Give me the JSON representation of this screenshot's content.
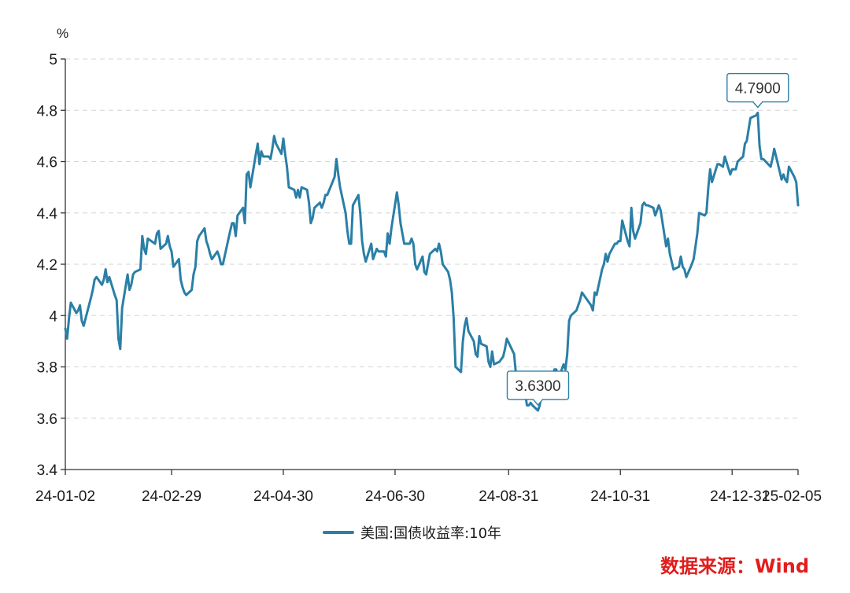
{
  "chart_data": {
    "type": "line",
    "y_unit": "%",
    "ylim": [
      3.4,
      5.0
    ],
    "y_ticks": [
      3.4,
      3.6,
      3.8,
      4.0,
      4.2,
      4.4,
      4.6,
      4.8,
      5.0
    ],
    "y_tick_labels": [
      "3.4",
      "3.6",
      "3.8",
      "4",
      "4.2",
      "4.4",
      "4.6",
      "4.8",
      "5"
    ],
    "x_ticks": [
      "24-01-02",
      "24-02-29",
      "24-04-30",
      "24-06-30",
      "24-08-31",
      "24-10-31",
      "24-12-31",
      "25-02-05"
    ],
    "grid": "horizontal dashed",
    "legend_position": "bottom",
    "color": "#2a7fa6",
    "series": [
      {
        "name": "美国:国债收益率:10年",
        "points": [
          [
            "24-01-02",
            3.95
          ],
          [
            "24-01-03",
            3.91
          ],
          [
            "24-01-04",
            3.99
          ],
          [
            "24-01-05",
            4.05
          ],
          [
            "24-01-08",
            4.01
          ],
          [
            "24-01-09",
            4.02
          ],
          [
            "24-01-10",
            4.04
          ],
          [
            "24-01-11",
            3.98
          ],
          [
            "24-01-12",
            3.96
          ],
          [
            "24-01-16",
            4.07
          ],
          [
            "24-01-17",
            4.1
          ],
          [
            "24-01-18",
            4.14
          ],
          [
            "24-01-19",
            4.15
          ],
          [
            "24-01-22",
            4.12
          ],
          [
            "24-01-23",
            4.14
          ],
          [
            "24-01-24",
            4.18
          ],
          [
            "24-01-25",
            4.13
          ],
          [
            "24-01-26",
            4.15
          ],
          [
            "24-01-29",
            4.08
          ],
          [
            "24-01-30",
            4.06
          ],
          [
            "24-01-31",
            3.91
          ],
          [
            "24-02-01",
            3.87
          ],
          [
            "24-02-02",
            4.03
          ],
          [
            "24-02-05",
            4.16
          ],
          [
            "24-02-06",
            4.1
          ],
          [
            "24-02-07",
            4.12
          ],
          [
            "24-02-08",
            4.16
          ],
          [
            "24-02-09",
            4.17
          ],
          [
            "24-02-12",
            4.18
          ],
          [
            "24-02-13",
            4.31
          ],
          [
            "24-02-14",
            4.26
          ],
          [
            "24-02-15",
            4.24
          ],
          [
            "24-02-16",
            4.3
          ],
          [
            "24-02-20",
            4.28
          ],
          [
            "24-02-21",
            4.32
          ],
          [
            "24-02-22",
            4.33
          ],
          [
            "24-02-23",
            4.26
          ],
          [
            "24-02-26",
            4.28
          ],
          [
            "24-02-27",
            4.31
          ],
          [
            "24-02-28",
            4.27
          ],
          [
            "24-02-29",
            4.25
          ],
          [
            "24-03-01",
            4.19
          ],
          [
            "24-03-04",
            4.22
          ],
          [
            "24-03-05",
            4.14
          ],
          [
            "24-03-06",
            4.11
          ],
          [
            "24-03-07",
            4.09
          ],
          [
            "24-03-08",
            4.08
          ],
          [
            "24-03-11",
            4.1
          ],
          [
            "24-03-12",
            4.16
          ],
          [
            "24-03-13",
            4.19
          ],
          [
            "24-03-14",
            4.29
          ],
          [
            "24-03-15",
            4.31
          ],
          [
            "24-03-18",
            4.34
          ],
          [
            "24-03-19",
            4.29
          ],
          [
            "24-03-20",
            4.27
          ],
          [
            "24-03-21",
            4.24
          ],
          [
            "24-03-22",
            4.22
          ],
          [
            "24-03-25",
            4.25
          ],
          [
            "24-03-26",
            4.23
          ],
          [
            "24-03-27",
            4.2
          ],
          [
            "24-03-28",
            4.2
          ],
          [
            "24-04-01",
            4.33
          ],
          [
            "24-04-02",
            4.36
          ],
          [
            "24-04-03",
            4.36
          ],
          [
            "24-04-04",
            4.31
          ],
          [
            "24-04-05",
            4.39
          ],
          [
            "24-04-08",
            4.42
          ],
          [
            "24-04-09",
            4.36
          ],
          [
            "24-04-10",
            4.55
          ],
          [
            "24-04-11",
            4.56
          ],
          [
            "24-04-12",
            4.5
          ],
          [
            "24-04-15",
            4.63
          ],
          [
            "24-04-16",
            4.67
          ],
          [
            "24-04-17",
            4.59
          ],
          [
            "24-04-18",
            4.64
          ],
          [
            "24-04-19",
            4.62
          ],
          [
            "24-04-22",
            4.62
          ],
          [
            "24-04-23",
            4.61
          ],
          [
            "24-04-24",
            4.65
          ],
          [
            "24-04-25",
            4.7
          ],
          [
            "24-04-26",
            4.67
          ],
          [
            "24-04-29",
            4.63
          ],
          [
            "24-04-30",
            4.69
          ],
          [
            "24-05-01",
            4.63
          ],
          [
            "24-05-02",
            4.58
          ],
          [
            "24-05-03",
            4.5
          ],
          [
            "24-05-06",
            4.49
          ],
          [
            "24-05-07",
            4.46
          ],
          [
            "24-05-08",
            4.49
          ],
          [
            "24-05-09",
            4.46
          ],
          [
            "24-05-10",
            4.5
          ],
          [
            "24-05-13",
            4.49
          ],
          [
            "24-05-14",
            4.44
          ],
          [
            "24-05-15",
            4.36
          ],
          [
            "24-05-16",
            4.38
          ],
          [
            "24-05-17",
            4.42
          ],
          [
            "24-05-20",
            4.44
          ],
          [
            "24-05-21",
            4.42
          ],
          [
            "24-05-22",
            4.44
          ],
          [
            "24-05-23",
            4.47
          ],
          [
            "24-05-24",
            4.47
          ],
          [
            "24-05-28",
            4.54
          ],
          [
            "24-05-29",
            4.61
          ],
          [
            "24-05-30",
            4.55
          ],
          [
            "24-05-31",
            4.5
          ],
          [
            "24-06-03",
            4.4
          ],
          [
            "24-06-04",
            4.33
          ],
          [
            "24-06-05",
            4.28
          ],
          [
            "24-06-06",
            4.28
          ],
          [
            "24-06-07",
            4.43
          ],
          [
            "24-06-10",
            4.47
          ],
          [
            "24-06-11",
            4.4
          ],
          [
            "24-06-12",
            4.29
          ],
          [
            "24-06-13",
            4.24
          ],
          [
            "24-06-14",
            4.21
          ],
          [
            "24-06-17",
            4.28
          ],
          [
            "24-06-18",
            4.22
          ],
          [
            "24-06-20",
            4.26
          ],
          [
            "24-06-21",
            4.25
          ],
          [
            "24-06-24",
            4.25
          ],
          [
            "24-06-25",
            4.23
          ],
          [
            "24-06-26",
            4.32
          ],
          [
            "24-06-27",
            4.28
          ],
          [
            "24-06-28",
            4.34
          ],
          [
            "24-07-01",
            4.48
          ],
          [
            "24-07-02",
            4.43
          ],
          [
            "24-07-03",
            4.36
          ],
          [
            "24-07-05",
            4.28
          ],
          [
            "24-07-08",
            4.28
          ],
          [
            "24-07-09",
            4.3
          ],
          [
            "24-07-10",
            4.28
          ],
          [
            "24-07-11",
            4.2
          ],
          [
            "24-07-12",
            4.18
          ],
          [
            "24-07-15",
            4.23
          ],
          [
            "24-07-16",
            4.17
          ],
          [
            "24-07-17",
            4.16
          ],
          [
            "24-07-18",
            4.2
          ],
          [
            "24-07-19",
            4.24
          ],
          [
            "24-07-22",
            4.26
          ],
          [
            "24-07-23",
            4.25
          ],
          [
            "24-07-24",
            4.28
          ],
          [
            "24-07-25",
            4.25
          ],
          [
            "24-07-26",
            4.2
          ],
          [
            "24-07-29",
            4.17
          ],
          [
            "24-07-30",
            4.14
          ],
          [
            "24-07-31",
            4.09
          ],
          [
            "24-08-01",
            3.99
          ],
          [
            "24-08-02",
            3.8
          ],
          [
            "24-08-05",
            3.78
          ],
          [
            "24-08-06",
            3.9
          ],
          [
            "24-08-07",
            3.96
          ],
          [
            "24-08-08",
            3.99
          ],
          [
            "24-08-09",
            3.94
          ],
          [
            "24-08-12",
            3.9
          ],
          [
            "24-08-13",
            3.85
          ],
          [
            "24-08-14",
            3.84
          ],
          [
            "24-08-15",
            3.92
          ],
          [
            "24-08-16",
            3.89
          ],
          [
            "24-08-19",
            3.88
          ],
          [
            "24-08-20",
            3.82
          ],
          [
            "24-08-21",
            3.8
          ],
          [
            "24-08-22",
            3.86
          ],
          [
            "24-08-23",
            3.81
          ],
          [
            "24-08-26",
            3.82
          ],
          [
            "24-08-27",
            3.83
          ],
          [
            "24-08-28",
            3.84
          ],
          [
            "24-08-29",
            3.87
          ],
          [
            "24-08-30",
            3.91
          ],
          [
            "24-09-03",
            3.85
          ],
          [
            "24-09-04",
            3.77
          ],
          [
            "24-09-05",
            3.73
          ],
          [
            "24-09-06",
            3.71
          ],
          [
            "24-09-09",
            3.7
          ],
          [
            "24-09-10",
            3.65
          ],
          [
            "24-09-11",
            3.65
          ],
          [
            "24-09-12",
            3.66
          ],
          [
            "24-09-13",
            3.65
          ],
          [
            "24-09-16",
            3.63
          ],
          [
            "24-09-17",
            3.65
          ],
          [
            "24-09-18",
            3.7
          ],
          [
            "24-09-19",
            3.73
          ],
          [
            "24-09-20",
            3.74
          ],
          [
            "24-09-23",
            3.75
          ],
          [
            "24-09-24",
            3.73
          ],
          [
            "24-09-25",
            3.79
          ],
          [
            "24-09-26",
            3.79
          ],
          [
            "24-09-27",
            3.75
          ],
          [
            "24-09-30",
            3.81
          ],
          [
            "24-10-01",
            3.79
          ],
          [
            "24-10-02",
            3.85
          ],
          [
            "24-10-03",
            3.98
          ],
          [
            "24-10-04",
            4.0
          ],
          [
            "24-10-07",
            4.02
          ],
          [
            "24-10-08",
            4.04
          ],
          [
            "24-10-09",
            4.06
          ],
          [
            "24-10-10",
            4.09
          ],
          [
            "24-10-11",
            4.08
          ],
          [
            "24-10-15",
            4.04
          ],
          [
            "24-10-16",
            4.02
          ],
          [
            "24-10-17",
            4.09
          ],
          [
            "24-10-18",
            4.08
          ],
          [
            "24-10-21",
            4.18
          ],
          [
            "24-10-22",
            4.2
          ],
          [
            "24-10-23",
            4.24
          ],
          [
            "24-10-24",
            4.21
          ],
          [
            "24-10-25",
            4.24
          ],
          [
            "24-10-28",
            4.28
          ],
          [
            "24-10-29",
            4.28
          ],
          [
            "24-10-30",
            4.29
          ],
          [
            "24-10-31",
            4.29
          ],
          [
            "24-11-01",
            4.37
          ],
          [
            "24-11-04",
            4.29
          ],
          [
            "24-11-05",
            4.27
          ],
          [
            "24-11-06",
            4.42
          ],
          [
            "24-11-07",
            4.33
          ],
          [
            "24-11-08",
            4.3
          ],
          [
            "24-11-11",
            4.36
          ],
          [
            "24-11-12",
            4.43
          ],
          [
            "24-11-13",
            4.44
          ],
          [
            "24-11-14",
            4.43
          ],
          [
            "24-11-15",
            4.43
          ],
          [
            "24-11-18",
            4.42
          ],
          [
            "24-11-19",
            4.39
          ],
          [
            "24-11-20",
            4.41
          ],
          [
            "24-11-21",
            4.43
          ],
          [
            "24-11-22",
            4.41
          ],
          [
            "24-11-25",
            4.27
          ],
          [
            "24-11-26",
            4.3
          ],
          [
            "24-11-27",
            4.24
          ],
          [
            "24-11-29",
            4.18
          ],
          [
            "24-12-02",
            4.19
          ],
          [
            "24-12-03",
            4.23
          ],
          [
            "24-12-04",
            4.19
          ],
          [
            "24-12-05",
            4.18
          ],
          [
            "24-12-06",
            4.15
          ],
          [
            "24-12-09",
            4.2
          ],
          [
            "24-12-10",
            4.22
          ],
          [
            "24-12-11",
            4.27
          ],
          [
            "24-12-12",
            4.32
          ],
          [
            "24-12-13",
            4.4
          ],
          [
            "24-12-16",
            4.39
          ],
          [
            "24-12-17",
            4.4
          ],
          [
            "24-12-18",
            4.5
          ],
          [
            "24-12-19",
            4.57
          ],
          [
            "24-12-20",
            4.52
          ],
          [
            "24-12-23",
            4.59
          ],
          [
            "24-12-24",
            4.59
          ],
          [
            "24-12-26",
            4.58
          ],
          [
            "24-12-27",
            4.62
          ],
          [
            "24-12-30",
            4.55
          ],
          [
            "24-12-31",
            4.57
          ],
          [
            "25-01-02",
            4.57
          ],
          [
            "25-01-03",
            4.6
          ],
          [
            "25-01-06",
            4.62
          ],
          [
            "25-01-07",
            4.67
          ],
          [
            "25-01-08",
            4.68
          ],
          [
            "25-01-10",
            4.77
          ],
          [
            "25-01-13",
            4.78
          ],
          [
            "25-01-14",
            4.79
          ],
          [
            "25-01-15",
            4.66
          ],
          [
            "25-01-16",
            4.61
          ],
          [
            "25-01-17",
            4.61
          ],
          [
            "25-01-21",
            4.58
          ],
          [
            "25-01-22",
            4.61
          ],
          [
            "25-01-23",
            4.65
          ],
          [
            "25-01-24",
            4.62
          ],
          [
            "25-01-27",
            4.53
          ],
          [
            "25-01-28",
            4.55
          ],
          [
            "25-01-29",
            4.53
          ],
          [
            "25-01-30",
            4.52
          ],
          [
            "25-01-31",
            4.58
          ],
          [
            "25-02-03",
            4.54
          ],
          [
            "25-02-04",
            4.52
          ],
          [
            "25-02-05",
            4.43
          ]
        ]
      }
    ],
    "annotations": [
      {
        "date": "24-09-16",
        "value": 3.63,
        "label": "3.6300"
      },
      {
        "date": "25-01-14",
        "value": 4.79,
        "label": "4.7900"
      }
    ]
  },
  "source_text": "数据来源：Wind",
  "source_color": "#e31c1c"
}
